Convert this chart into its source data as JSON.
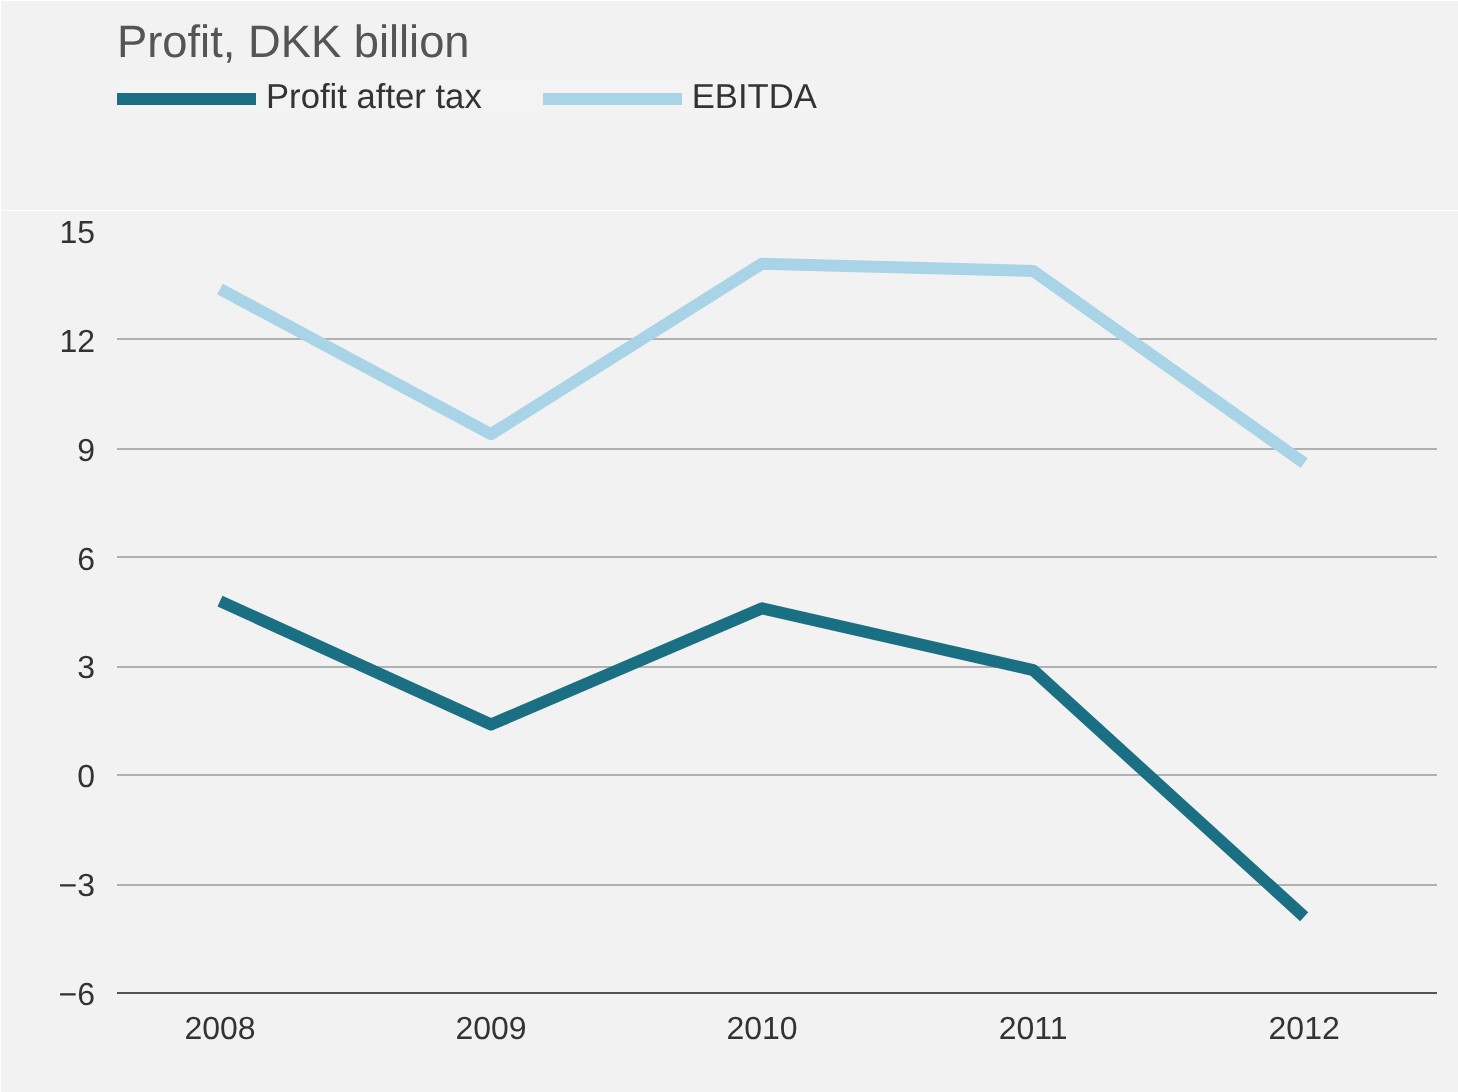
{
  "chart_data": {
    "type": "line",
    "title": "Profit, DKK billion",
    "x": [
      2008,
      2009,
      2010,
      2011,
      2012
    ],
    "series": [
      {
        "name": "Profit after tax",
        "color": "#1b6f82",
        "values": [
          4.8,
          1.4,
          4.6,
          2.9,
          -3.9
        ]
      },
      {
        "name": "EBITDA",
        "color": "#a9d3e6",
        "values": [
          13.4,
          9.4,
          14.1,
          13.9,
          8.6
        ]
      }
    ],
    "xlim": [
      2007.62,
      2012.49
    ],
    "xticks": [
      2008,
      2009,
      2010,
      2011,
      2012
    ],
    "ylim": [
      -6,
      15
    ],
    "yticks": [
      -6,
      -3,
      0,
      3,
      6,
      9,
      12,
      15
    ],
    "grid": "y",
    "legend": "top left",
    "marker": "none",
    "line_style": "solid"
  }
}
